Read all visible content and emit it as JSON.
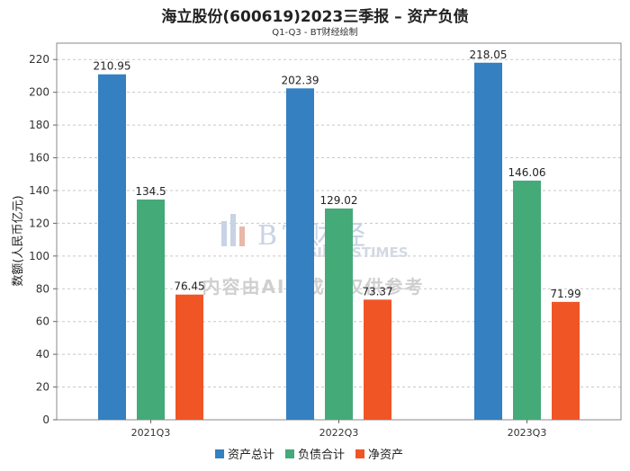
{
  "chart_data": {
    "type": "bar",
    "title": "海立股份(600619)2023三季报 – 资产负债",
    "subtitle": "Q1-Q3 - BT财经绘制",
    "xlabel": "",
    "ylabel": "数额(人民币亿元)",
    "ylim": [
      0,
      230
    ],
    "yticks": [
      0,
      20,
      40,
      60,
      80,
      100,
      120,
      140,
      160,
      180,
      200,
      220
    ],
    "grid": true,
    "legend_position": "bottom-center",
    "categories": [
      "2021Q3",
      "2022Q3",
      "2023Q3"
    ],
    "series": [
      {
        "name": "资产总计",
        "color": "#3480c0",
        "values": [
          210.95,
          202.39,
          218.05
        ],
        "labels": [
          "210.95",
          "202.39",
          "218.05"
        ]
      },
      {
        "name": "负债合计",
        "color": "#44aa78",
        "values": [
          134.5,
          129.02,
          146.06
        ],
        "labels": [
          "134.5",
          "129.02",
          "146.06"
        ]
      },
      {
        "name": "净资产",
        "color": "#f05526",
        "values": [
          76.45,
          73.37,
          71.99
        ],
        "labels": [
          "76.45",
          "73.37",
          "71.99"
        ]
      }
    ]
  },
  "watermark": {
    "logo_text": "BT财经",
    "logo_sub": "BUSINESSTIMES",
    "note": "内容由AI生成，仅供参考"
  }
}
